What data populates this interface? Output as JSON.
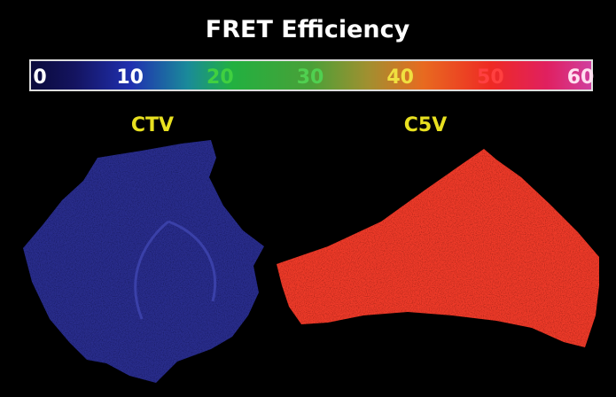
{
  "title": "FRET Efficiency",
  "colorbar": {
    "lim": [
      0,
      60
    ],
    "ticks": [
      0,
      10,
      20,
      30,
      40,
      50,
      60
    ]
  },
  "labels": [
    "CTV",
    "C5V"
  ]
}
